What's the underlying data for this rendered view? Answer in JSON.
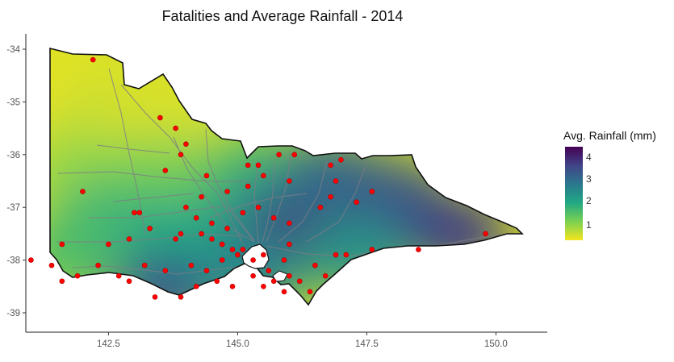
{
  "title": "Fatalities and Average Rainfall - 2014",
  "legend": {
    "title": "Avg. Rainfall (mm)",
    "ticks": [
      "1",
      "2",
      "3",
      "4"
    ],
    "colors": [
      "#f3e51e",
      "#7ad151",
      "#22a884",
      "#2a788e",
      "#414487",
      "#440154"
    ]
  },
  "chart_data": {
    "type": "heatmap",
    "title": "Fatalities and Average Rainfall - 2014",
    "x_ticks": [
      "142.5",
      "145.0",
      "147.5",
      "150.0"
    ],
    "y_ticks": [
      "-34",
      "-35",
      "-36",
      "-37",
      "-38",
      "-39"
    ],
    "xlim": [
      140.9,
      150.2
    ],
    "ylim": [
      -39.2,
      -33.7
    ],
    "fill_range": [
      0.3,
      4.6
    ],
    "fill_label": "Avg. Rainfall (mm)",
    "point_color": "#ff0000",
    "rainfall_zones": [
      {
        "lon": 141.6,
        "lat": -34.7,
        "value": 0.4
      },
      {
        "lon": 142.5,
        "lat": -35.2,
        "value": 0.6
      },
      {
        "lon": 143.3,
        "lat": -35.4,
        "value": 0.5
      },
      {
        "lon": 142.0,
        "lat": -36.3,
        "value": 1.0
      },
      {
        "lon": 143.5,
        "lat": -36.4,
        "value": 1.2
      },
      {
        "lon": 142.4,
        "lat": -37.3,
        "value": 1.8
      },
      {
        "lon": 143.8,
        "lat": -37.5,
        "value": 2.0
      },
      {
        "lon": 141.8,
        "lat": -37.9,
        "value": 1.6
      },
      {
        "lon": 143.6,
        "lat": -38.6,
        "value": 3.4
      },
      {
        "lon": 145.3,
        "lat": -36.3,
        "value": 1.6
      },
      {
        "lon": 145.6,
        "lat": -37.0,
        "value": 2.4
      },
      {
        "lon": 146.4,
        "lat": -37.3,
        "value": 3.0
      },
      {
        "lon": 146.0,
        "lat": -37.7,
        "value": 3.9
      },
      {
        "lon": 147.2,
        "lat": -36.9,
        "value": 4.2
      },
      {
        "lon": 146.8,
        "lat": -36.4,
        "value": 3.1
      },
      {
        "lon": 148.0,
        "lat": -36.8,
        "value": 3.4
      },
      {
        "lon": 148.4,
        "lat": -37.3,
        "value": 3.5
      },
      {
        "lon": 149.2,
        "lat": -37.5,
        "value": 3.8
      },
      {
        "lon": 147.3,
        "lat": -37.9,
        "value": 2.4
      },
      {
        "lon": 145.2,
        "lat": -38.3,
        "value": 2.6
      }
    ],
    "fatalities": [
      [
        142.2,
        -34.2
      ],
      [
        143.5,
        -35.3
      ],
      [
        143.8,
        -35.5
      ],
      [
        144.0,
        -35.8
      ],
      [
        143.9,
        -36.0
      ],
      [
        143.6,
        -36.3
      ],
      [
        144.4,
        -36.4
      ],
      [
        145.2,
        -36.2
      ],
      [
        145.4,
        -36.2
      ],
      [
        145.8,
        -36.0
      ],
      [
        146.1,
        -36.0
      ],
      [
        146.8,
        -36.2
      ],
      [
        147.0,
        -36.1
      ],
      [
        146.0,
        -36.5
      ],
      [
        145.5,
        -36.4
      ],
      [
        145.2,
        -36.6
      ],
      [
        144.8,
        -36.7
      ],
      [
        144.3,
        -36.8
      ],
      [
        144.0,
        -37.0
      ],
      [
        143.1,
        -37.1
      ],
      [
        143.0,
        -37.1
      ],
      [
        142.0,
        -36.7
      ],
      [
        143.3,
        -37.4
      ],
      [
        143.9,
        -37.5
      ],
      [
        144.2,
        -37.2
      ],
      [
        144.5,
        -37.3
      ],
      [
        144.8,
        -37.4
      ],
      [
        145.1,
        -37.1
      ],
      [
        145.4,
        -37.0
      ],
      [
        145.7,
        -37.2
      ],
      [
        146.0,
        -37.3
      ],
      [
        146.6,
        -37.0
      ],
      [
        147.3,
        -36.9
      ],
      [
        147.6,
        -36.7
      ],
      [
        146.9,
        -36.5
      ],
      [
        146.8,
        -36.8
      ],
      [
        146.0,
        -37.7
      ],
      [
        144.9,
        -37.8
      ],
      [
        145.0,
        -37.9
      ],
      [
        145.1,
        -37.8
      ],
      [
        144.7,
        -37.7
      ],
      [
        144.5,
        -37.6
      ],
      [
        144.3,
        -37.5
      ],
      [
        143.8,
        -37.6
      ],
      [
        142.9,
        -37.6
      ],
      [
        142.5,
        -37.7
      ],
      [
        141.6,
        -37.7
      ],
      [
        141.0,
        -38.0
      ],
      [
        141.4,
        -38.1
      ],
      [
        141.9,
        -38.3
      ],
      [
        142.3,
        -38.1
      ],
      [
        142.7,
        -38.3
      ],
      [
        143.2,
        -38.1
      ],
      [
        143.6,
        -38.2
      ],
      [
        144.1,
        -38.1
      ],
      [
        144.4,
        -38.2
      ],
      [
        144.7,
        -38.0
      ],
      [
        145.3,
        -38.0
      ],
      [
        145.5,
        -37.9
      ],
      [
        145.9,
        -38.0
      ],
      [
        145.6,
        -38.2
      ],
      [
        145.3,
        -38.3
      ],
      [
        145.7,
        -38.4
      ],
      [
        146.0,
        -38.3
      ],
      [
        146.2,
        -38.4
      ],
      [
        146.5,
        -38.1
      ],
      [
        146.9,
        -37.9
      ],
      [
        147.1,
        -37.9
      ],
      [
        147.6,
        -37.8
      ],
      [
        148.5,
        -37.8
      ],
      [
        149.8,
        -37.5
      ],
      [
        146.4,
        -38.6
      ],
      [
        145.9,
        -38.6
      ],
      [
        145.5,
        -38.5
      ],
      [
        144.9,
        -38.5
      ],
      [
        144.2,
        -38.5
      ],
      [
        143.9,
        -38.7
      ],
      [
        143.4,
        -38.7
      ],
      [
        142.9,
        -38.4
      ],
      [
        141.6,
        -38.4
      ],
      [
        144.6,
        -38.4
      ],
      [
        146.7,
        -38.3
      ]
    ]
  }
}
